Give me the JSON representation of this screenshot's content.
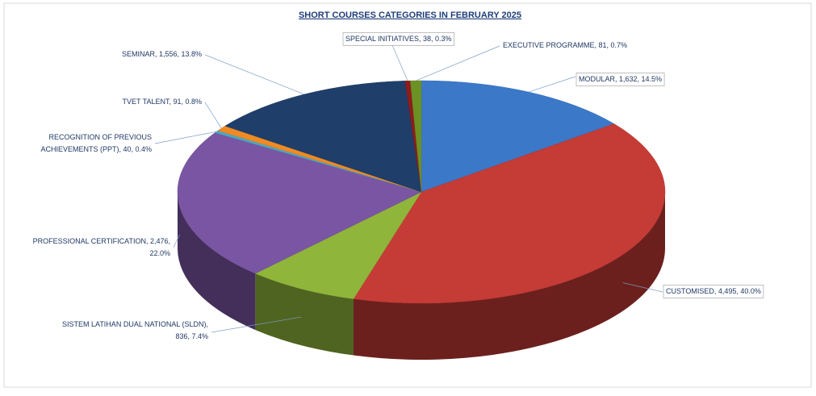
{
  "chart_data": {
    "type": "pie3d",
    "title": "SHORT COURSES CATEGORIES IN FEBRUARY 2025",
    "values": [
      1632,
      4495,
      836,
      2476,
      40,
      91,
      1556,
      38,
      81
    ],
    "value_labels": [
      [
        "MODULAR, 1,632, 14.5%"
      ],
      [
        "CUSTOMISED, 4,495, 40.0%"
      ],
      [
        "SISTEM LATIHAN DUAL NATIONAL (SLDN),",
        "836, 7.4%"
      ],
      [
        "PROFESSIONAL CERTIFICATION, 2,476,",
        "22.0%"
      ],
      [
        "RECOGNITION OF PREVIOUS",
        "ACHIEVEMENTS (PPT), 40, 0.4%"
      ],
      [
        "TVET TALENT, 91, 0.8%"
      ],
      [
        "SEMINAR, 1,556, 13.8%"
      ],
      [
        "SPECIAL INITIATIVES, 38, 0.3%"
      ],
      [
        "EXECUTIVE PROGRAMME, 81, 0.7%"
      ]
    ],
    "colors": [
      "#3b78c8",
      "#c53b35",
      "#8fb53b",
      "#7a55a3",
      "#4aa9c2",
      "#f08a24",
      "#1f3e6a",
      "#8e1c1c",
      "#6c9124"
    ]
  }
}
